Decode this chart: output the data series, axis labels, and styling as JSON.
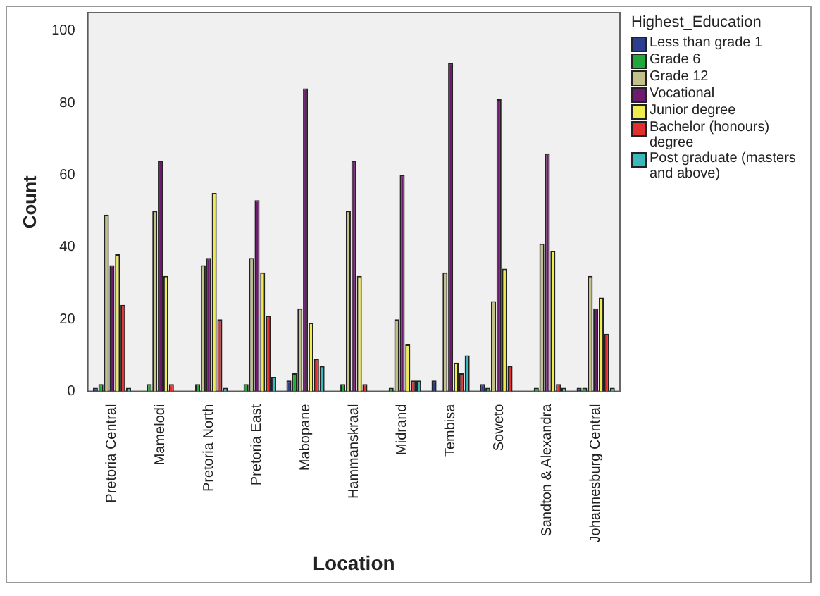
{
  "chart_data": {
    "type": "bar",
    "xlabel": "Location",
    "ylabel": "Count",
    "legend_title": "Highest_Education",
    "legend": "right",
    "categories": [
      "Pretoria Central",
      "Mamelodi",
      "Pretoria North",
      "Pretoria East",
      "Mabopane",
      "Hammanskraal",
      "Midrand",
      "Tembisa",
      "Soweto",
      "Sandton & Alexandra",
      "Johannesburg Central"
    ],
    "series": [
      {
        "name": "Less than grade 1",
        "color": "#2b3e8f",
        "values": [
          1,
          0,
          0,
          0,
          3,
          0,
          0,
          3,
          2,
          0,
          1
        ]
      },
      {
        "name": "Grade 6",
        "color": "#22a83a",
        "values": [
          2,
          2,
          2,
          2,
          5,
          2,
          1,
          0,
          1,
          1,
          1
        ]
      },
      {
        "name": "Grade 12",
        "color": "#c4c08c",
        "values": [
          49,
          50,
          35,
          37,
          23,
          50,
          20,
          33,
          25,
          41,
          32
        ]
      },
      {
        "name": "Vocational",
        "color": "#6e1a6e",
        "values": [
          35,
          64,
          37,
          53,
          84,
          64,
          60,
          91,
          81,
          66,
          23
        ]
      },
      {
        "name": "Junior degree",
        "color": "#f0ec50",
        "values": [
          38,
          32,
          55,
          33,
          19,
          32,
          13,
          8,
          34,
          39,
          26
        ]
      },
      {
        "name": "Bachelor (honours) degree",
        "color": "#e23030",
        "values": [
          24,
          2,
          20,
          21,
          9,
          2,
          3,
          5,
          7,
          2,
          16
        ]
      },
      {
        "name": "Post graduate (masters and above)",
        "color": "#3ab8c0",
        "values": [
          1,
          0,
          1,
          4,
          7,
          0,
          3,
          10,
          0,
          1,
          1
        ]
      }
    ],
    "ylim": [
      0,
      105
    ],
    "yticks": [
      0,
      20,
      40,
      60,
      80,
      100
    ],
    "grid": false
  }
}
